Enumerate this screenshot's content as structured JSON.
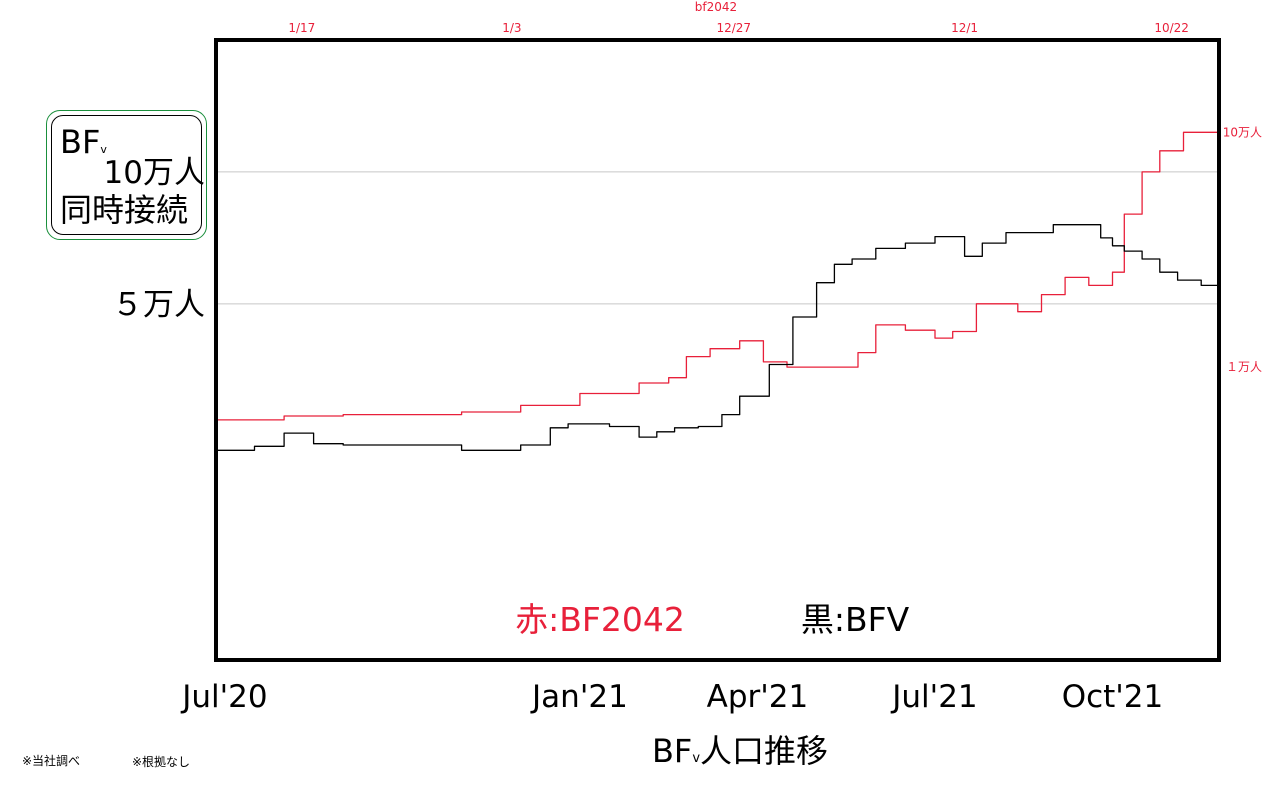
{
  "box": {
    "line1": "BF",
    "line1_sub": "v",
    "line2": "同時接続"
  },
  "notes": [
    "※当社調べ",
    "※根拠なし"
  ],
  "chart_data": {
    "type": "line",
    "title": "BFv人口推移",
    "title_main": "BF",
    "title_sub": "v",
    "title_rest": "人口推移",
    "x_ticks": [
      {
        "label": "Jul'20",
        "x": 0
      },
      {
        "label": "Jan'21",
        "x": 6
      },
      {
        "label": "Apr'21",
        "x": 9
      },
      {
        "label": "Jul'21",
        "x": 12
      },
      {
        "label": "Oct'21",
        "x": 15
      }
    ],
    "xlim": [
      -0.15,
      16.8
    ],
    "ylim": [
      -85000,
      150000
    ],
    "y_ticks": [
      {
        "label": "10万人",
        "value": 100000
      },
      {
        "label": "５万人",
        "value": 50000
      }
    ],
    "grid": true,
    "top_annotations": {
      "series_label": "bf2042",
      "dates": [
        {
          "label": "1/17",
          "x": 1.3
        },
        {
          "label": "1/3",
          "x": 4.85
        },
        {
          "label": "12/27",
          "x": 8.6
        },
        {
          "label": "12/1",
          "x": 12.5
        },
        {
          "label": "10/22",
          "x": 16.0
        }
      ]
    },
    "right_annotations": [
      {
        "label": "10万人",
        "value": 115000
      },
      {
        "label": "１万人",
        "value": 26000
      }
    ],
    "legend_text": [
      {
        "label": "赤:BF2042",
        "color": "#e8203a"
      },
      {
        "label": "黒:BFV",
        "color": "#000000"
      }
    ],
    "series": [
      {
        "name": "BF2042",
        "color": "#e8203a",
        "x": [
          -0.15,
          1.0,
          2.0,
          3.0,
          4.0,
          5.0,
          6.0,
          7.0,
          7.5,
          7.8,
          8.2,
          8.7,
          8.9,
          9.1,
          9.5,
          10.0,
          10.4,
          10.7,
          11.0,
          11.3,
          11.5,
          12.0,
          12.3,
          12.7,
          13.0,
          13.4,
          13.8,
          14.2,
          14.6,
          14.8,
          15.0,
          15.2,
          15.5,
          15.8,
          16.2,
          16.8
        ],
        "values": [
          6000,
          7500,
          8000,
          8000,
          9000,
          11500,
          16000,
          20000,
          22000,
          30000,
          33000,
          36000,
          36000,
          28000,
          26000,
          26000,
          26000,
          31500,
          42000,
          42000,
          40000,
          37000,
          39500,
          50000,
          50000,
          47000,
          53500,
          60000,
          57000,
          57000,
          62000,
          84000,
          100000,
          108000,
          115000,
          115000
        ]
      },
      {
        "name": "BFV",
        "color": "#000000",
        "x": [
          -0.15,
          0.5,
          1.0,
          1.5,
          2.0,
          3.0,
          4.0,
          5.0,
          5.5,
          5.8,
          6.2,
          6.5,
          7.0,
          7.3,
          7.6,
          8.0,
          8.4,
          8.7,
          9.2,
          9.6,
          10.0,
          10.3,
          10.6,
          11.0,
          11.5,
          12.0,
          12.5,
          12.8,
          13.2,
          13.7,
          14.0,
          14.5,
          14.8,
          15.0,
          15.2,
          15.5,
          15.8,
          16.1,
          16.5,
          16.8
        ],
        "values": [
          -5500,
          -4000,
          1000,
          -3000,
          -3500,
          -3500,
          -5500,
          -3500,
          3000,
          4500,
          4500,
          3500,
          -500,
          1500,
          3000,
          3500,
          8000,
          15000,
          27000,
          45000,
          58000,
          65000,
          67000,
          71000,
          73000,
          75500,
          68000,
          73000,
          77000,
          77000,
          80000,
          80000,
          75000,
          72000,
          70000,
          67000,
          62000,
          59000,
          57000,
          57000
        ]
      }
    ]
  }
}
